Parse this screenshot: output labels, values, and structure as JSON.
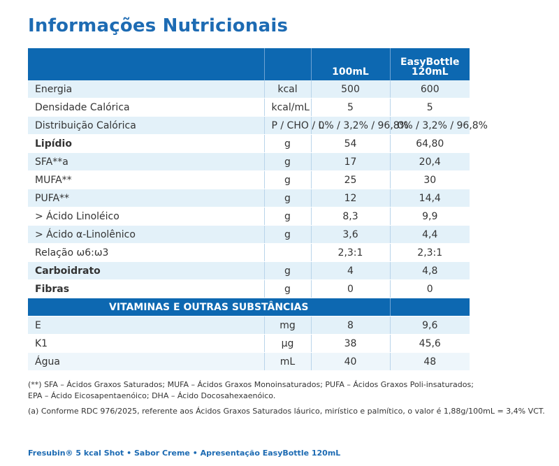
{
  "title": "Informações Nutricionais",
  "table": {
    "headers": [
      "",
      "",
      "100mL",
      "EasyBottle\n120mL"
    ],
    "rows": [
      {
        "name": "Energia",
        "unit": "kcal",
        "v1": "500",
        "v2": "600",
        "bold": false
      },
      {
        "name": "Densidade Calórica",
        "unit": "kcal/mL",
        "v1": "5",
        "v2": "5",
        "bold": false
      },
      {
        "name": "Distribuição Calórica",
        "unit": "P / CHO / L",
        "v1": "0% / 3,2% / 96,8%",
        "v2": "0% / 3,2% / 96,8%",
        "bold": false
      },
      {
        "name": "Lipídio",
        "unit": "g",
        "v1": "54",
        "v2": "64,80",
        "bold": true
      },
      {
        "name": "SFA**a",
        "unit": "g",
        "v1": "17",
        "v2": "20,4",
        "bold": false
      },
      {
        "name": "MUFA**",
        "unit": "g",
        "v1": "25",
        "v2": "30",
        "bold": false
      },
      {
        "name": "PUFA**",
        "unit": "g",
        "v1": "12",
        "v2": "14,4",
        "bold": false
      },
      {
        "name": "> Ácido Linoléico",
        "unit": "g",
        "v1": "8,3",
        "v2": "9,9",
        "bold": false
      },
      {
        "name": "> Ácido α-Linolênico",
        "unit": "g",
        "v1": "3,6",
        "v2": "4,4",
        "bold": false
      },
      {
        "name": "Relação ω6:ω3",
        "unit": "",
        "v1": "2,3:1",
        "v2": "2,3:1",
        "bold": false
      },
      {
        "name": "Carboidrato",
        "unit": "g",
        "v1": "4",
        "v2": "4,8",
        "bold": true
      },
      {
        "name": "Fibras",
        "unit": "g",
        "v1": "0",
        "v2": "0",
        "bold": true
      }
    ],
    "section_title": "VITAMINAS E OUTRAS SUBSTÂNCIAS",
    "rows2": [
      {
        "name": "E",
        "unit": "mg",
        "v1": "8",
        "v2": "9,6",
        "bold": false
      },
      {
        "name": "K1",
        "unit": "µg",
        "v1": "38",
        "v2": "45,6",
        "bold": false
      },
      {
        "name": "Água",
        "unit": "mL",
        "v1": "40",
        "v2": "48",
        "bold": false
      }
    ]
  },
  "footnotes": {
    "line1": "(**) SFA – Ácidos Graxos Saturados; MUFA – Ácidos Graxos Monoinsaturados; PUFA – Ácidos Graxos Poli-insaturados;",
    "line2": "EPA – Ácido Eicosapentaenóico; DHA – Ácido Docosahexaenóico.",
    "line3": "(a) Conforme RDC 976/2025, referente aos Ácidos Graxos Saturados láurico, mirístico e palmítico, o valor é 1,88g/100mL = 3,4% VCT."
  },
  "footer": "Fresubin® 5 kcal Shot • Sabor Creme • Apresentação EasyBottle 120mL",
  "colors": {
    "brand_blue": "#0d68b1",
    "title_blue": "#1d6bb3",
    "row_alt": "#e3f1f9"
  }
}
